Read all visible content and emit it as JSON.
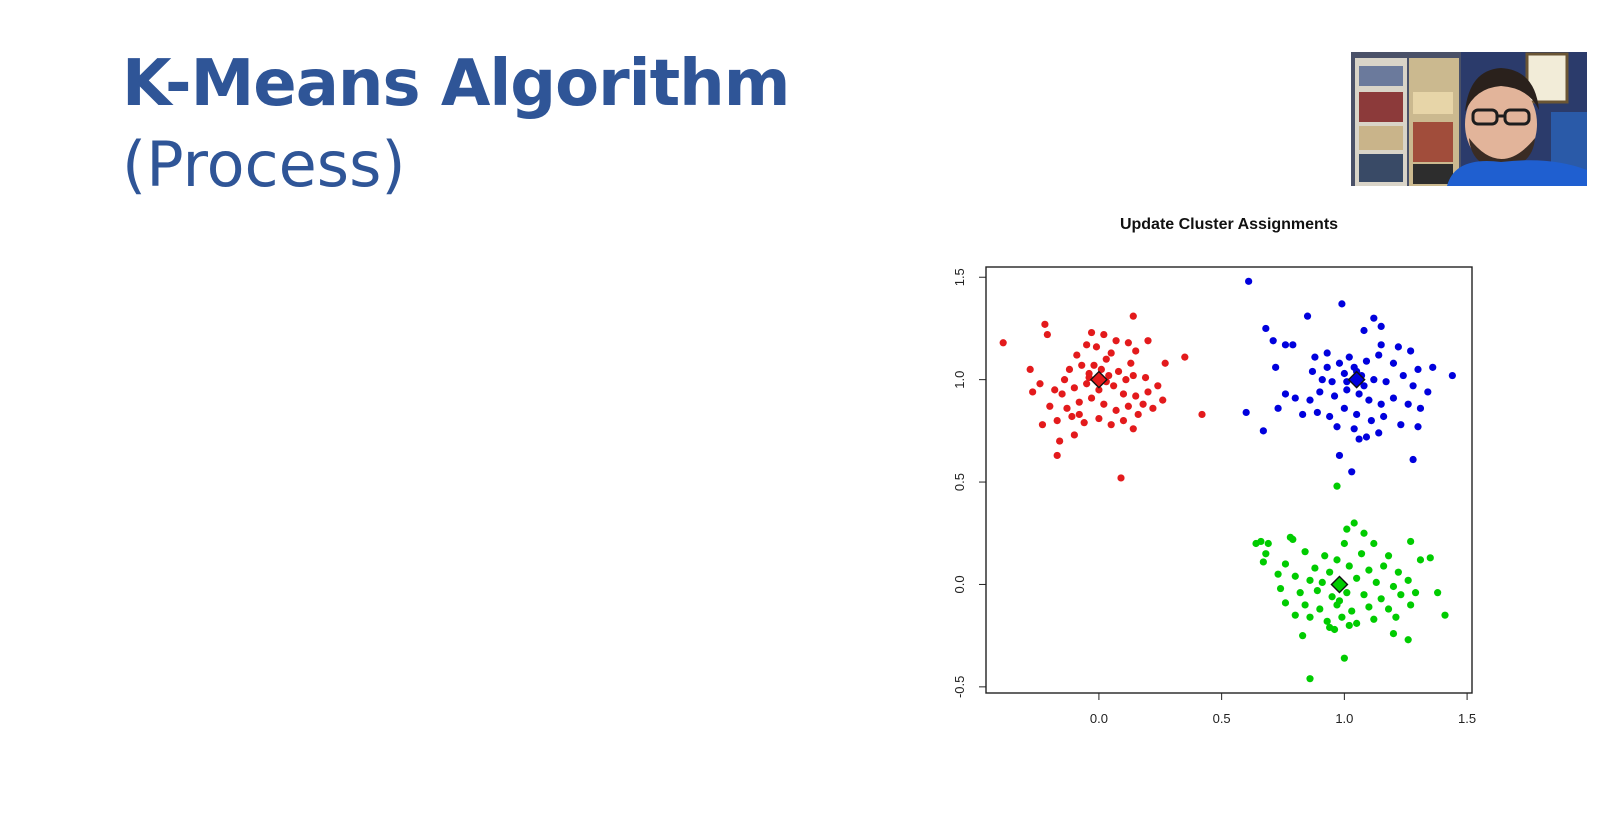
{
  "slide": {
    "title": "K-Means Algorithm",
    "subtitle": "(Process)"
  },
  "webcam": {
    "icon": "presenter-video"
  },
  "colors": {
    "title": "#2f5597",
    "cluster_red": "#e31a1c",
    "cluster_blue": "#0000dd",
    "cluster_green": "#00cc00"
  },
  "chart_data": {
    "type": "scatter",
    "title": "Update Cluster Assignments",
    "xlabel": "",
    "ylabel": "",
    "xlim": [
      -0.46,
      1.52
    ],
    "ylim": [
      -0.53,
      1.55
    ],
    "xticks": [
      0.0,
      0.5,
      1.0,
      1.5
    ],
    "xtick_labels": [
      "0.0",
      "0.5",
      "1.0",
      "1.5"
    ],
    "yticks": [
      -0.5,
      0.0,
      0.5,
      1.0,
      1.5
    ],
    "ytick_labels": [
      "-0.5",
      "0.0",
      "0.5",
      "1.0",
      "1.5"
    ],
    "grid": false,
    "series": [
      {
        "color": "#e31a1c",
        "centroid": [
          0.0,
          1.0
        ],
        "points": [
          [
            -0.39,
            1.18
          ],
          [
            -0.22,
            1.27
          ],
          [
            -0.21,
            1.22
          ],
          [
            0.14,
            1.31
          ],
          [
            -0.03,
            1.23
          ],
          [
            0.02,
            1.22
          ],
          [
            0.07,
            1.19
          ],
          [
            0.12,
            1.18
          ],
          [
            0.2,
            1.19
          ],
          [
            -0.28,
            1.05
          ],
          [
            -0.05,
            1.17
          ],
          [
            -0.01,
            1.16
          ],
          [
            0.05,
            1.13
          ],
          [
            -0.09,
            1.12
          ],
          [
            0.03,
            1.1
          ],
          [
            0.15,
            1.14
          ],
          [
            0.27,
            1.08
          ],
          [
            0.35,
            1.11
          ],
          [
            -0.24,
            0.98
          ],
          [
            -0.27,
            0.94
          ],
          [
            -0.18,
            0.95
          ],
          [
            -0.12,
            1.05
          ],
          [
            -0.07,
            1.07
          ],
          [
            -0.04,
            1.03
          ],
          [
            0.01,
            1.05
          ],
          [
            0.04,
            1.02
          ],
          [
            0.08,
            1.04
          ],
          [
            0.11,
            1.0
          ],
          [
            0.14,
            1.02
          ],
          [
            0.19,
            1.01
          ],
          [
            0.24,
            0.97
          ],
          [
            -0.15,
            0.93
          ],
          [
            -0.1,
            0.96
          ],
          [
            -0.05,
            0.98
          ],
          [
            0.0,
            0.95
          ],
          [
            0.06,
            0.97
          ],
          [
            0.1,
            0.93
          ],
          [
            0.15,
            0.92
          ],
          [
            0.18,
            0.88
          ],
          [
            0.22,
            0.86
          ],
          [
            0.26,
            0.9
          ],
          [
            -0.2,
            0.87
          ],
          [
            -0.13,
            0.86
          ],
          [
            -0.08,
            0.89
          ],
          [
            -0.03,
            0.91
          ],
          [
            0.02,
            0.88
          ],
          [
            0.07,
            0.85
          ],
          [
            0.12,
            0.87
          ],
          [
            0.16,
            0.83
          ],
          [
            -0.23,
            0.78
          ],
          [
            -0.17,
            0.8
          ],
          [
            -0.11,
            0.82
          ],
          [
            -0.06,
            0.79
          ],
          [
            0.0,
            0.81
          ],
          [
            0.05,
            0.78
          ],
          [
            0.1,
            0.8
          ],
          [
            0.14,
            0.76
          ],
          [
            -0.16,
            0.7
          ],
          [
            -0.1,
            0.73
          ],
          [
            -0.17,
            0.63
          ],
          [
            0.09,
            0.52
          ],
          [
            0.42,
            0.83
          ],
          [
            -0.04,
            1.01
          ],
          [
            0.03,
            0.99
          ],
          [
            -0.02,
            1.07
          ],
          [
            -0.14,
            1.0
          ],
          [
            0.2,
            0.94
          ],
          [
            0.13,
            1.08
          ],
          [
            -0.08,
            0.83
          ]
        ]
      },
      {
        "color": "#0000dd",
        "centroid": [
          1.05,
          1.0
        ],
        "points": [
          [
            0.61,
            1.48
          ],
          [
            0.85,
            1.31
          ],
          [
            0.99,
            1.37
          ],
          [
            1.12,
            1.3
          ],
          [
            1.15,
            1.26
          ],
          [
            0.68,
            1.25
          ],
          [
            0.71,
            1.19
          ],
          [
            0.76,
            1.17
          ],
          [
            0.79,
            1.17
          ],
          [
            1.08,
            1.24
          ],
          [
            1.15,
            1.17
          ],
          [
            1.22,
            1.16
          ],
          [
            1.27,
            1.14
          ],
          [
            0.88,
            1.11
          ],
          [
            0.93,
            1.13
          ],
          [
            0.98,
            1.08
          ],
          [
            1.02,
            1.11
          ],
          [
            1.09,
            1.09
          ],
          [
            1.14,
            1.12
          ],
          [
            1.2,
            1.08
          ],
          [
            1.3,
            1.05
          ],
          [
            1.36,
            1.06
          ],
          [
            1.44,
            1.02
          ],
          [
            0.72,
            1.06
          ],
          [
            0.87,
            1.04
          ],
          [
            0.91,
            1.0
          ],
          [
            0.95,
            0.99
          ],
          [
            1.0,
            1.03
          ],
          [
            1.04,
            1.06
          ],
          [
            1.07,
            1.02
          ],
          [
            1.12,
            1.0
          ],
          [
            1.17,
            0.99
          ],
          [
            1.24,
            1.02
          ],
          [
            1.28,
            0.97
          ],
          [
            1.34,
            0.94
          ],
          [
            0.76,
            0.93
          ],
          [
            0.8,
            0.91
          ],
          [
            0.86,
            0.9
          ],
          [
            0.9,
            0.94
          ],
          [
            0.96,
            0.92
          ],
          [
            1.01,
            0.95
          ],
          [
            1.06,
            0.93
          ],
          [
            1.1,
            0.9
          ],
          [
            1.15,
            0.88
          ],
          [
            1.2,
            0.91
          ],
          [
            1.26,
            0.88
          ],
          [
            1.31,
            0.86
          ],
          [
            0.6,
            0.84
          ],
          [
            0.73,
            0.86
          ],
          [
            0.83,
            0.83
          ],
          [
            0.89,
            0.84
          ],
          [
            0.94,
            0.82
          ],
          [
            1.0,
            0.86
          ],
          [
            1.05,
            0.83
          ],
          [
            1.11,
            0.8
          ],
          [
            1.16,
            0.82
          ],
          [
            1.23,
            0.78
          ],
          [
            1.3,
            0.77
          ],
          [
            0.67,
            0.75
          ],
          [
            0.97,
            0.77
          ],
          [
            1.04,
            0.76
          ],
          [
            1.09,
            0.72
          ],
          [
            1.14,
            0.74
          ],
          [
            1.06,
            0.71
          ],
          [
            0.98,
            0.63
          ],
          [
            1.28,
            0.61
          ],
          [
            1.03,
            0.55
          ],
          [
            1.05,
            1.04
          ],
          [
            1.08,
            0.97
          ],
          [
            1.01,
            0.99
          ],
          [
            0.93,
            1.06
          ]
        ]
      },
      {
        "color": "#00cc00",
        "centroid": [
          0.98,
          0.0
        ],
        "points": [
          [
            0.97,
            0.48
          ],
          [
            1.04,
            0.3
          ],
          [
            1.01,
            0.27
          ],
          [
            1.08,
            0.25
          ],
          [
            0.64,
            0.2
          ],
          [
            0.66,
            0.21
          ],
          [
            0.69,
            0.2
          ],
          [
            0.78,
            0.23
          ],
          [
            0.79,
            0.22
          ],
          [
            1.0,
            0.2
          ],
          [
            1.12,
            0.2
          ],
          [
            1.27,
            0.21
          ],
          [
            0.68,
            0.15
          ],
          [
            0.84,
            0.16
          ],
          [
            0.92,
            0.14
          ],
          [
            0.97,
            0.12
          ],
          [
            1.07,
            0.15
          ],
          [
            1.18,
            0.14
          ],
          [
            1.31,
            0.12
          ],
          [
            0.67,
            0.11
          ],
          [
            0.76,
            0.1
          ],
          [
            0.88,
            0.08
          ],
          [
            0.94,
            0.06
          ],
          [
            1.02,
            0.09
          ],
          [
            1.1,
            0.07
          ],
          [
            1.16,
            0.09
          ],
          [
            1.22,
            0.06
          ],
          [
            0.8,
            0.04
          ],
          [
            0.86,
            0.02
          ],
          [
            0.91,
            0.01
          ],
          [
            1.05,
            0.03
          ],
          [
            1.13,
            0.01
          ],
          [
            1.2,
            -0.01
          ],
          [
            1.26,
            0.02
          ],
          [
            0.74,
            -0.02
          ],
          [
            0.82,
            -0.04
          ],
          [
            0.89,
            -0.03
          ],
          [
            0.95,
            -0.06
          ],
          [
            1.01,
            -0.04
          ],
          [
            1.08,
            -0.05
          ],
          [
            1.15,
            -0.07
          ],
          [
            1.23,
            -0.05
          ],
          [
            1.29,
            -0.04
          ],
          [
            1.38,
            -0.04
          ],
          [
            0.76,
            -0.09
          ],
          [
            0.84,
            -0.1
          ],
          [
            0.9,
            -0.12
          ],
          [
            0.97,
            -0.1
          ],
          [
            1.03,
            -0.13
          ],
          [
            1.1,
            -0.11
          ],
          [
            1.18,
            -0.12
          ],
          [
            1.27,
            -0.1
          ],
          [
            0.8,
            -0.15
          ],
          [
            0.86,
            -0.16
          ],
          [
            0.93,
            -0.18
          ],
          [
            0.99,
            -0.16
          ],
          [
            1.05,
            -0.19
          ],
          [
            1.12,
            -0.17
          ],
          [
            1.21,
            -0.16
          ],
          [
            1.41,
            -0.15
          ],
          [
            0.94,
            -0.21
          ],
          [
            0.96,
            -0.22
          ],
          [
            1.02,
            -0.2
          ],
          [
            0.83,
            -0.25
          ],
          [
            1.2,
            -0.24
          ],
          [
            1.26,
            -0.27
          ],
          [
            1.0,
            -0.36
          ],
          [
            0.86,
            -0.46
          ],
          [
            0.73,
            0.05
          ],
          [
            1.35,
            0.13
          ],
          [
            0.98,
            -0.08
          ]
        ]
      }
    ]
  }
}
